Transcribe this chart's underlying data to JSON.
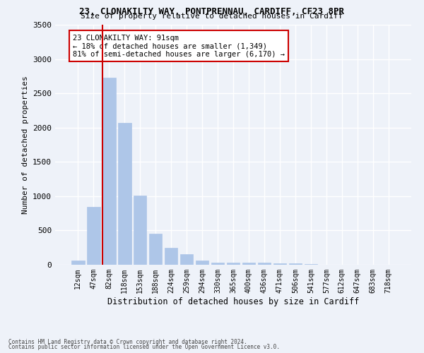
{
  "title1": "23, CLONAKILTY WAY, PONTPRENNAU, CARDIFF, CF23 8PR",
  "title2": "Size of property relative to detached houses in Cardiff",
  "xlabel": "Distribution of detached houses by size in Cardiff",
  "ylabel": "Number of detached properties",
  "categories": [
    "12sqm",
    "47sqm",
    "82sqm",
    "118sqm",
    "153sqm",
    "188sqm",
    "224sqm",
    "259sqm",
    "294sqm",
    "330sqm",
    "365sqm",
    "400sqm",
    "436sqm",
    "471sqm",
    "506sqm",
    "541sqm",
    "577sqm",
    "612sqm",
    "647sqm",
    "683sqm",
    "718sqm"
  ],
  "values": [
    60,
    840,
    2730,
    2070,
    1010,
    450,
    250,
    155,
    65,
    30,
    30,
    30,
    30,
    20,
    20,
    10,
    5,
    5,
    5,
    5,
    5
  ],
  "bar_color": "#aec6e8",
  "bar_edgecolor": "#aec6e8",
  "vline_color": "#cc0000",
  "annotation_text": "23 CLONAKILTY WAY: 91sqm\n← 18% of detached houses are smaller (1,349)\n81% of semi-detached houses are larger (6,170) →",
  "annotation_box_edgecolor": "#cc0000",
  "ylim": [
    0,
    3500
  ],
  "yticks": [
    0,
    500,
    1000,
    1500,
    2000,
    2500,
    3000,
    3500
  ],
  "background_color": "#eef2f9",
  "grid_color": "#ffffff",
  "footer1": "Contains HM Land Registry data © Crown copyright and database right 2024.",
  "footer2": "Contains public sector information licensed under the Open Government Licence v3.0."
}
